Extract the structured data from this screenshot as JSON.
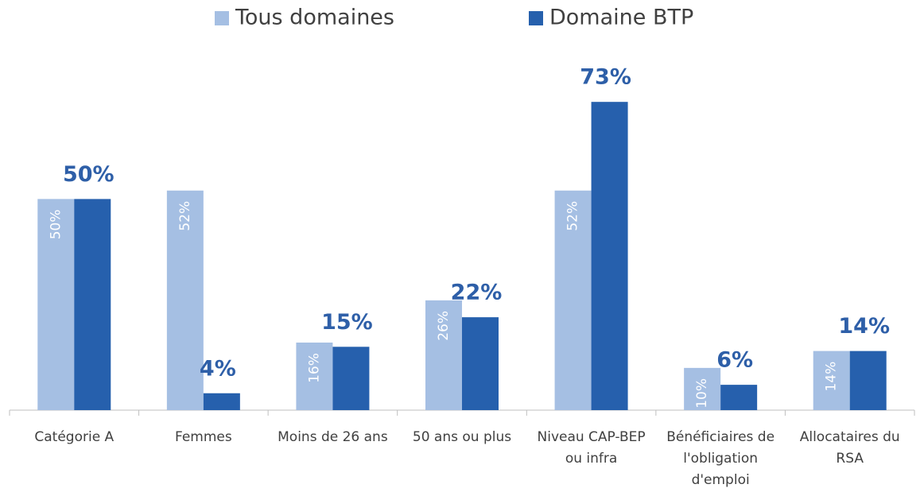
{
  "chart_data": {
    "type": "bar",
    "categories": [
      "Catégorie A",
      "Femmes",
      "Moins de 26 ans",
      "50 ans ou plus",
      "Niveau CAP-BEP ou infra",
      "Bénéficiaires de l'obligation d'emploi",
      "Allocataires du RSA"
    ],
    "series": [
      {
        "name": "Tous domaines",
        "color": "#a5bfe3",
        "values": [
          50,
          52,
          16,
          26,
          52,
          10,
          14
        ],
        "value_labels": [
          "50%",
          "52%",
          "16%",
          "26%",
          "52%",
          "10%",
          "14%"
        ]
      },
      {
        "name": "Domaine BTP",
        "color": "#2660ad",
        "values": [
          50,
          4,
          15,
          22,
          73,
          6,
          14
        ],
        "value_labels": [
          "50%",
          "4%",
          "15%",
          "22%",
          "73%",
          "6%",
          "14%"
        ]
      }
    ],
    "ylim": [
      0,
      80
    ],
    "legend": "top"
  }
}
